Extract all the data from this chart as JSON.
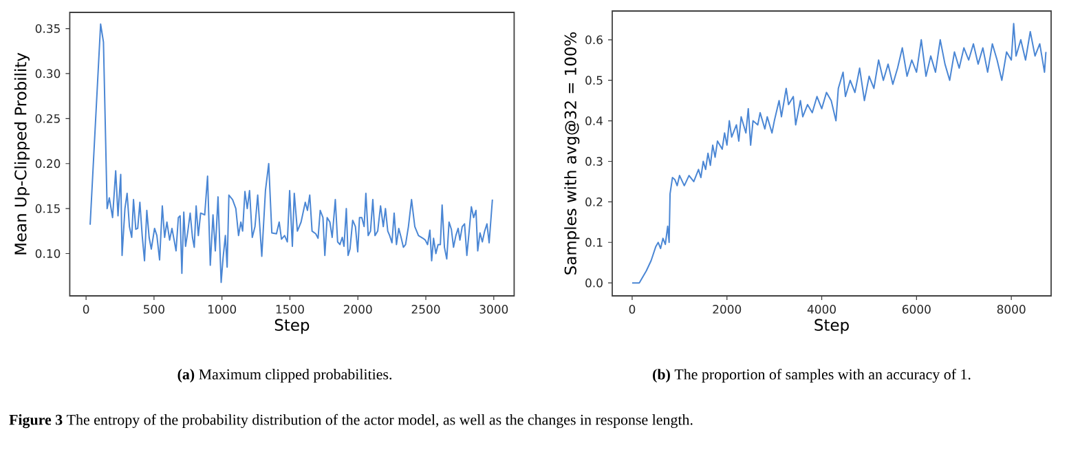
{
  "chart_data": [
    {
      "type": "line",
      "xlabel": "Step",
      "ylabel": "Mean Up-Clipped Probility",
      "xlim": [
        -120,
        3150
      ],
      "ylim": [
        0.053,
        0.368
      ],
      "xticks": [
        0,
        500,
        1000,
        1500,
        2000,
        2500,
        3000
      ],
      "yticks": [
        {
          "value": 0.1,
          "label": "0.10"
        },
        0.15,
        {
          "value": 0.2,
          "label": "0.20"
        },
        0.25,
        {
          "value": 0.3,
          "label": "0.30"
        },
        0.35
      ],
      "x": [
        30,
        107,
        128,
        155,
        171,
        195,
        218,
        235,
        255,
        265,
        286,
        302,
        319,
        336,
        349,
        366,
        380,
        396,
        413,
        430,
        447,
        464,
        480,
        504,
        521,
        541,
        561,
        578,
        595,
        615,
        632,
        648,
        662,
        679,
        692,
        705,
        719,
        732,
        749,
        766,
        783,
        796,
        810,
        826,
        843,
        873,
        894,
        914,
        934,
        951,
        971,
        994,
        1008,
        1025,
        1038,
        1051,
        1078,
        1102,
        1122,
        1139,
        1152,
        1169,
        1186,
        1203,
        1223,
        1243,
        1263,
        1293,
        1320,
        1344,
        1367,
        1401,
        1421,
        1438,
        1461,
        1481,
        1498,
        1518,
        1532,
        1555,
        1582,
        1613,
        1629,
        1646,
        1663,
        1690,
        1707,
        1723,
        1743,
        1757,
        1774,
        1794,
        1811,
        1834,
        1851,
        1868,
        1885,
        1898,
        1915,
        1928,
        1942,
        1962,
        1982,
        1999,
        2012,
        2029,
        2046,
        2059,
        2076,
        2093,
        2110,
        2126,
        2146,
        2167,
        2187,
        2203,
        2220,
        2234,
        2251,
        2267,
        2284,
        2301,
        2318,
        2335,
        2351,
        2372,
        2395,
        2419,
        2446,
        2479,
        2496,
        2513,
        2530,
        2543,
        2557,
        2574,
        2590,
        2607,
        2620,
        2637,
        2654,
        2671,
        2688,
        2704,
        2721,
        2738,
        2751,
        2768,
        2785,
        2802,
        2819,
        2835,
        2852,
        2869,
        2882,
        2899,
        2916,
        2933,
        2950,
        2966,
        2990
      ],
      "series": [
        {
          "color": "#4a86d4",
          "values": [
            0.132,
            0.355,
            0.335,
            0.15,
            0.162,
            0.14,
            0.192,
            0.142,
            0.188,
            0.098,
            0.15,
            0.167,
            0.13,
            0.118,
            0.16,
            0.127,
            0.128,
            0.157,
            0.12,
            0.092,
            0.148,
            0.118,
            0.105,
            0.128,
            0.12,
            0.093,
            0.153,
            0.118,
            0.135,
            0.115,
            0.128,
            0.115,
            0.103,
            0.14,
            0.142,
            0.078,
            0.146,
            0.108,
            0.125,
            0.145,
            0.118,
            0.107,
            0.153,
            0.12,
            0.145,
            0.143,
            0.186,
            0.087,
            0.143,
            0.103,
            0.163,
            0.068,
            0.095,
            0.12,
            0.085,
            0.165,
            0.16,
            0.15,
            0.12,
            0.135,
            0.125,
            0.169,
            0.15,
            0.17,
            0.118,
            0.13,
            0.165,
            0.097,
            0.17,
            0.2,
            0.123,
            0.122,
            0.135,
            0.116,
            0.12,
            0.113,
            0.17,
            0.108,
            0.167,
            0.125,
            0.135,
            0.157,
            0.148,
            0.165,
            0.125,
            0.122,
            0.117,
            0.148,
            0.14,
            0.098,
            0.14,
            0.135,
            0.118,
            0.16,
            0.113,
            0.11,
            0.118,
            0.108,
            0.15,
            0.098,
            0.105,
            0.137,
            0.13,
            0.102,
            0.14,
            0.14,
            0.13,
            0.167,
            0.12,
            0.125,
            0.16,
            0.12,
            0.125,
            0.153,
            0.13,
            0.15,
            0.125,
            0.12,
            0.112,
            0.145,
            0.11,
            0.128,
            0.118,
            0.107,
            0.11,
            0.13,
            0.16,
            0.13,
            0.12,
            0.117,
            0.115,
            0.11,
            0.126,
            0.092,
            0.117,
            0.1,
            0.11,
            0.11,
            0.154,
            0.107,
            0.094,
            0.135,
            0.127,
            0.107,
            0.12,
            0.128,
            0.115,
            0.13,
            0.133,
            0.098,
            0.125,
            0.152,
            0.14,
            0.148,
            0.103,
            0.123,
            0.113,
            0.125,
            0.133,
            0.112,
            0.16
          ]
        }
      ],
      "annotations": [
        "**(a)** Maximum clipped probabilities.",
        "**Figure 3** The entropy of the probability distribution of the actor model, as well as the changes in response length."
      ]
    },
    {
      "type": "line",
      "xlabel": "Step",
      "ylabel": "Samples with avg@32 = 100%",
      "xlim": [
        -420,
        8840
      ],
      "ylim": [
        -0.032,
        0.671
      ],
      "xticks": [
        0,
        2000,
        4000,
        6000,
        8000
      ],
      "yticks": [
        {
          "value": 0,
          "label": "0.0"
        },
        0.1,
        0.2,
        0.3,
        0.4,
        0.5,
        0.6
      ],
      "x": [
        0,
        150,
        200,
        300,
        400,
        500,
        550,
        600,
        650,
        700,
        750,
        780,
        800,
        850,
        900,
        950,
        1000,
        1100,
        1200,
        1300,
        1400,
        1450,
        1500,
        1550,
        1600,
        1650,
        1700,
        1750,
        1800,
        1900,
        1950,
        2000,
        2050,
        2100,
        2200,
        2250,
        2300,
        2400,
        2450,
        2500,
        2550,
        2650,
        2700,
        2800,
        2850,
        2950,
        3000,
        3100,
        3150,
        3250,
        3300,
        3400,
        3450,
        3550,
        3600,
        3700,
        3800,
        3900,
        4000,
        4100,
        4200,
        4300,
        4350,
        4450,
        4500,
        4600,
        4700,
        4800,
        4900,
        5000,
        5100,
        5200,
        5300,
        5400,
        5500,
        5600,
        5700,
        5800,
        5900,
        6000,
        6100,
        6200,
        6300,
        6400,
        6500,
        6600,
        6700,
        6800,
        6900,
        7000,
        7100,
        7200,
        7300,
        7400,
        7500,
        7600,
        7700,
        7800,
        7900,
        8000,
        8050,
        8100,
        8200,
        8300,
        8400,
        8500,
        8600,
        8700,
        8730
      ],
      "series": [
        {
          "color": "#4a86d4",
          "values": [
            0.0,
            0.0,
            0.01,
            0.03,
            0.055,
            0.09,
            0.1,
            0.085,
            0.11,
            0.095,
            0.14,
            0.1,
            0.22,
            0.26,
            0.255,
            0.24,
            0.265,
            0.24,
            0.265,
            0.25,
            0.28,
            0.26,
            0.3,
            0.28,
            0.32,
            0.29,
            0.34,
            0.31,
            0.35,
            0.33,
            0.37,
            0.34,
            0.4,
            0.36,
            0.39,
            0.35,
            0.41,
            0.37,
            0.43,
            0.34,
            0.4,
            0.39,
            0.42,
            0.38,
            0.41,
            0.37,
            0.4,
            0.45,
            0.41,
            0.48,
            0.44,
            0.46,
            0.39,
            0.45,
            0.41,
            0.44,
            0.42,
            0.46,
            0.43,
            0.47,
            0.45,
            0.4,
            0.48,
            0.52,
            0.46,
            0.5,
            0.47,
            0.53,
            0.45,
            0.51,
            0.48,
            0.55,
            0.5,
            0.54,
            0.49,
            0.53,
            0.58,
            0.51,
            0.55,
            0.52,
            0.6,
            0.51,
            0.56,
            0.52,
            0.6,
            0.54,
            0.5,
            0.57,
            0.53,
            0.58,
            0.55,
            0.59,
            0.54,
            0.58,
            0.52,
            0.59,
            0.55,
            0.5,
            0.57,
            0.55,
            0.64,
            0.56,
            0.6,
            0.55,
            0.62,
            0.56,
            0.59,
            0.52,
            0.57
          ]
        }
      ],
      "annotations": [
        "**(b)** The proportion of samples with an accuracy of 1."
      ]
    }
  ]
}
